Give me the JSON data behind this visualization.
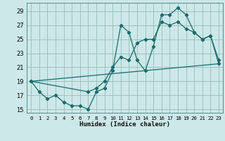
{
  "title": "",
  "xlabel": "Humidex (Indice chaleur)",
  "bg_color": "#cce8e8",
  "grid_color": "#99bbbb",
  "line_color": "#1a6b6b",
  "xlim": [
    -0.5,
    23.5
  ],
  "ylim": [
    14.5,
    30.2
  ],
  "xticks": [
    0,
    1,
    2,
    3,
    4,
    5,
    6,
    7,
    8,
    9,
    10,
    11,
    12,
    13,
    14,
    15,
    16,
    17,
    18,
    19,
    20,
    21,
    22,
    23
  ],
  "yticks": [
    15,
    17,
    19,
    21,
    23,
    25,
    27,
    29
  ],
  "line1_x": [
    0,
    1,
    2,
    3,
    4,
    5,
    6,
    7,
    8,
    9,
    10,
    11,
    12,
    13,
    14,
    15,
    16,
    17,
    18,
    19,
    20,
    21,
    22,
    23
  ],
  "line1_y": [
    19,
    17.5,
    16.5,
    17,
    16,
    15.5,
    15.5,
    15,
    17.5,
    18,
    20.5,
    27,
    26,
    22,
    20.5,
    24,
    28.5,
    28.5,
    29.5,
    28.5,
    26,
    25,
    25.5,
    22
  ],
  "line2_x": [
    0,
    23
  ],
  "line2_y": [
    19,
    21.5
  ],
  "line3_x": [
    0,
    7,
    8,
    9,
    10,
    11,
    12,
    13,
    14,
    15,
    16,
    17,
    18,
    19,
    20,
    21,
    22,
    23
  ],
  "line3_y": [
    19,
    17.5,
    18,
    19,
    21,
    22.5,
    22,
    24.5,
    25,
    25,
    27.5,
    27,
    27.5,
    26.5,
    26,
    25,
    25.5,
    21.5
  ]
}
